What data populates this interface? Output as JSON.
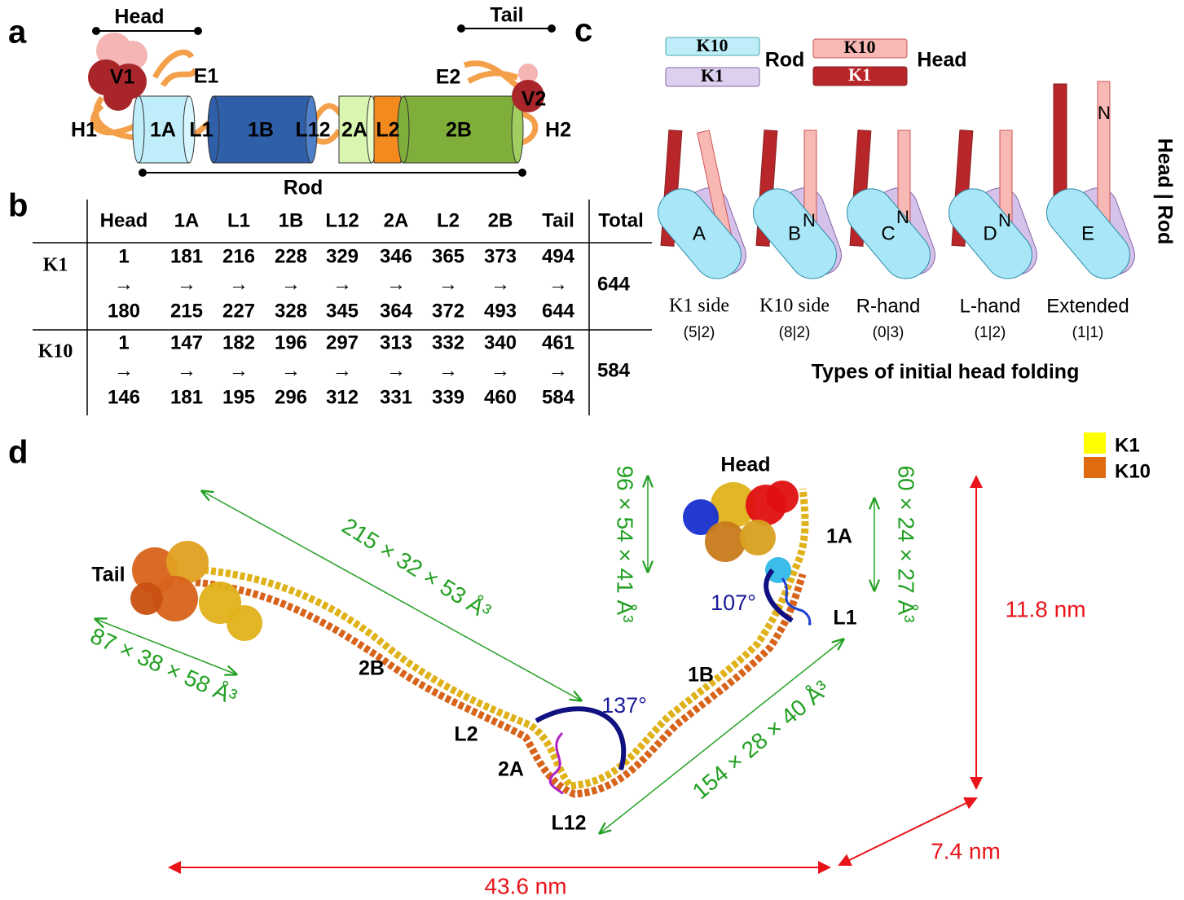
{
  "panel_a": {
    "label": "a",
    "head": "Head",
    "tail": "Tail",
    "rod": "Rod",
    "segments": {
      "v1": "V1",
      "e1": "E1",
      "h1": "H1",
      "a1": "1A",
      "l1": "L1",
      "b1": "1B",
      "l12": "L12",
      "a2": "2A",
      "l2": "L2",
      "b2": "2B",
      "v2": "V2",
      "e2": "E2",
      "h2": "H2"
    }
  },
  "panel_b": {
    "label": "b",
    "columns": [
      "Head",
      "1A",
      "L1",
      "1B",
      "L12",
      "2A",
      "L2",
      "2B",
      "Tail"
    ],
    "total_header": "Total",
    "arrow": "→",
    "rows": [
      {
        "name": "K1",
        "start": [
          1,
          181,
          216,
          228,
          329,
          346,
          365,
          373,
          494
        ],
        "end": [
          180,
          215,
          227,
          328,
          345,
          364,
          372,
          493,
          644
        ],
        "total": 644
      },
      {
        "name": "K10",
        "start": [
          1,
          147,
          182,
          196,
          297,
          313,
          332,
          340,
          461
        ],
        "end": [
          146,
          181,
          195,
          296,
          312,
          331,
          339,
          460,
          584
        ],
        "total": 584
      }
    ]
  },
  "panel_c": {
    "label": "c",
    "legend": {
      "rod_k10": "K10",
      "rod_k1": "K1",
      "rod": "Rod",
      "head_k10": "K10",
      "head_k1": "K1",
      "head": "Head"
    },
    "types": [
      {
        "letter": "A",
        "name": "K1 side",
        "counts": "(5|2)"
      },
      {
        "letter": "B",
        "name": "K10 side",
        "counts": "(8|2)"
      },
      {
        "letter": "C",
        "name": "R-hand",
        "counts": "(0|3)"
      },
      {
        "letter": "D",
        "name": "L-hand",
        "counts": "(1|2)"
      },
      {
        "letter": "E",
        "name": "Extended",
        "counts": "(1|1)"
      }
    ],
    "n_label": "N",
    "side_label": "Head | Rod",
    "title": "Types of initial head folding"
  },
  "panel_d": {
    "label": "d",
    "legend": [
      {
        "name": "K1",
        "color": "#ffff00"
      },
      {
        "name": "K10",
        "color": "#e06a10"
      }
    ],
    "labels": {
      "tail": "Tail",
      "head": "Head",
      "a1": "1A",
      "l1": "L1",
      "b1": "1B",
      "b2": "2B",
      "l2": "L2",
      "a2": "2A",
      "l12": "L12"
    },
    "angles": [
      "107°",
      "137°"
    ],
    "dimensions": {
      "rod2": "215 × 32 × 53 Å³",
      "tail": "87 × 38 × 58 Å³",
      "head_k1": "96 × 54 × 41 Å³",
      "head_k10": "60 × 24 × 27 Å³",
      "rod1": "154 × 28 × 40 Å³"
    },
    "scale": {
      "height": "11.8 nm",
      "depth": "7.4 nm",
      "length": "43.6 nm"
    }
  }
}
